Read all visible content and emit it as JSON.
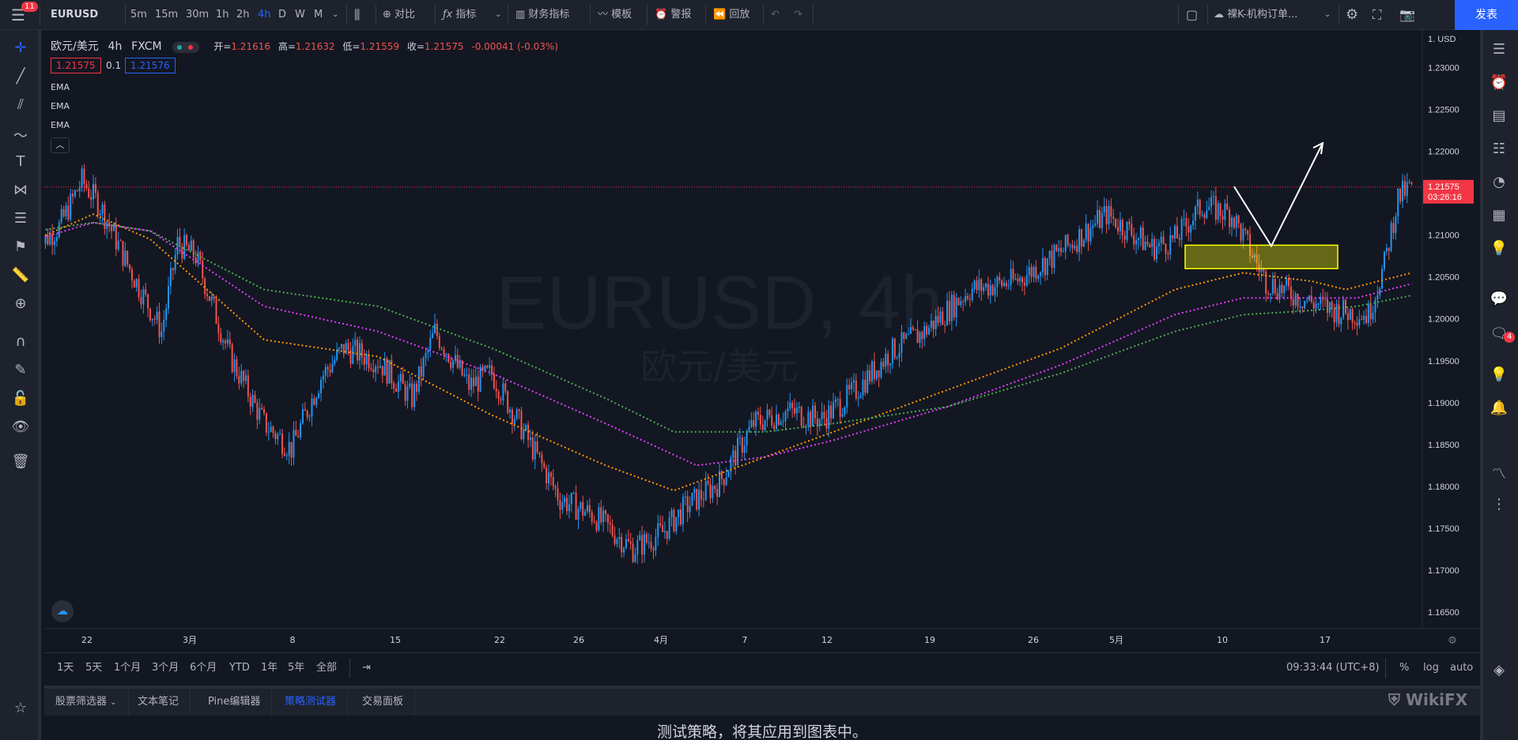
{
  "topbar": {
    "badge": "11",
    "symbol": "EURUSD",
    "intervals": [
      "5m",
      "15m",
      "30m",
      "1h",
      "2h",
      "4h",
      "D",
      "W",
      "M"
    ],
    "active_interval": "4h",
    "compare": "对比",
    "indicators": "指标",
    "financials": "财务指标",
    "templates": "模板",
    "alert": "警报",
    "replay": "回放",
    "layout_name": "裸K-机构订单...",
    "publish": "发表"
  },
  "legend": {
    "pair": "欧元/美元",
    "interval": "4h",
    "source": "FXCM",
    "open_label": "开=",
    "open": "1.21616",
    "high_label": "高=",
    "high": "1.21632",
    "low_label": "低=",
    "low": "1.21559",
    "close_label": "收=",
    "close": "1.21575",
    "change": "-0.00041 (-0.03%)",
    "bid": "1.21575",
    "spread": "0.1",
    "ask": "1.21576",
    "indicators": [
      "EMA",
      "EMA",
      "EMA"
    ]
  },
  "watermark": {
    "symbol": "EURUSD, 4h",
    "name": "欧元/美元"
  },
  "price_axis": {
    "currency": "1. USD",
    "ticks": [
      "1.23000",
      "1.22500",
      "1.22000",
      "1.21500",
      "1.21000",
      "1.20500",
      "1.20000",
      "1.19500",
      "1.19000",
      "1.18500",
      "1.18000",
      "1.17500",
      "1.17000",
      "1.16500"
    ],
    "last_price": "1.21575",
    "countdown": "03:26:16"
  },
  "time_axis": {
    "ticks": [
      "22",
      "3月",
      "8",
      "15",
      "22",
      "26",
      "4月",
      "7",
      "12",
      "19",
      "26",
      "5月",
      "10",
      "17"
    ]
  },
  "chart_data": {
    "type": "candlestick",
    "symbol": "EURUSD",
    "ylim": [
      1.163,
      1.2345
    ],
    "close_points": [
      [
        0,
        1.2085
      ],
      [
        10,
        1.211
      ],
      [
        20,
        1.2165
      ],
      [
        28,
        1.2135
      ],
      [
        40,
        1.2065
      ],
      [
        55,
        1.1985
      ],
      [
        62,
        1.209
      ],
      [
        70,
        1.2075
      ],
      [
        85,
        1.1955
      ],
      [
        100,
        1.1875
      ],
      [
        112,
        1.1845
      ],
      [
        125,
        1.193
      ],
      [
        135,
        1.1965
      ],
      [
        150,
        1.195
      ],
      [
        165,
        1.1905
      ],
      [
        175,
        1.1985
      ],
      [
        190,
        1.192
      ],
      [
        200,
        1.1935
      ],
      [
        215,
        1.186
      ],
      [
        230,
        1.1785
      ],
      [
        245,
        1.1765
      ],
      [
        262,
        1.1725
      ],
      [
        275,
        1.1745
      ],
      [
        285,
        1.1775
      ],
      [
        300,
        1.1805
      ],
      [
        315,
        1.1875
      ],
      [
        330,
        1.189
      ],
      [
        345,
        1.188
      ],
      [
        360,
        1.1915
      ],
      [
        375,
        1.196
      ],
      [
        390,
        1.1985
      ],
      [
        410,
        1.2035
      ],
      [
        430,
        1.2045
      ],
      [
        450,
        1.208
      ],
      [
        470,
        1.2125
      ],
      [
        490,
        1.2085
      ],
      [
        500,
        1.2095
      ],
      [
        512,
        1.2135
      ],
      [
        525,
        1.2125
      ],
      [
        540,
        1.2045
      ],
      [
        555,
        1.2025
      ],
      [
        570,
        1.201
      ],
      [
        585,
        1.2005
      ],
      [
        592,
        1.2065
      ],
      [
        598,
        1.2145
      ],
      [
        604,
        1.2158
      ]
    ],
    "ema_series": [
      {
        "color": "#ff9800",
        "points": [
          [
            0,
            1.2095
          ],
          [
            25,
            1.2125
          ],
          [
            50,
            1.2095
          ],
          [
            100,
            1.1975
          ],
          [
            150,
            1.1955
          ],
          [
            200,
            1.1885
          ],
          [
            250,
            1.1825
          ],
          [
            280,
            1.1795
          ],
          [
            300,
            1.1815
          ],
          [
            350,
            1.1865
          ],
          [
            400,
            1.1915
          ],
          [
            450,
            1.1965
          ],
          [
            500,
            1.2035
          ],
          [
            530,
            1.2055
          ],
          [
            560,
            1.2045
          ],
          [
            575,
            1.2035
          ],
          [
            604,
            1.2055
          ]
        ]
      },
      {
        "color": "#e040fb",
        "points": [
          [
            0,
            1.2095
          ],
          [
            25,
            1.2115
          ],
          [
            50,
            1.2105
          ],
          [
            100,
            1.2015
          ],
          [
            150,
            1.1985
          ],
          [
            200,
            1.1935
          ],
          [
            250,
            1.1875
          ],
          [
            290,
            1.1825
          ],
          [
            320,
            1.1835
          ],
          [
            350,
            1.1855
          ],
          [
            400,
            1.1895
          ],
          [
            450,
            1.1945
          ],
          [
            500,
            1.2005
          ],
          [
            530,
            1.2025
          ],
          [
            560,
            1.2025
          ],
          [
            580,
            1.2025
          ],
          [
            604,
            1.2042
          ]
        ]
      },
      {
        "color": "#4caf50",
        "points": [
          [
            0,
            1.2105
          ],
          [
            25,
            1.2115
          ],
          [
            50,
            1.2105
          ],
          [
            100,
            1.2035
          ],
          [
            150,
            1.2015
          ],
          [
            200,
            1.1965
          ],
          [
            250,
            1.1905
          ],
          [
            280,
            1.1865
          ],
          [
            320,
            1.1865
          ],
          [
            350,
            1.1875
          ],
          [
            400,
            1.1895
          ],
          [
            450,
            1.1935
          ],
          [
            500,
            1.1985
          ],
          [
            530,
            1.2005
          ],
          [
            560,
            1.201
          ],
          [
            580,
            1.2015
          ],
          [
            604,
            1.2028
          ]
        ]
      }
    ],
    "annotation_zone": {
      "price_from": 1.206,
      "price_to": 1.2088,
      "color": "#ffff00"
    },
    "projection": [
      [
        1.2158
      ],
      [
        1.2087
      ],
      [
        1.221
      ]
    ],
    "last_price": 1.21575
  },
  "bottom_toolbar": {
    "ranges": [
      "1天",
      "5天",
      "1个月",
      "3个月",
      "6个月",
      "YTD",
      "1年",
      "5年",
      "全部"
    ],
    "clock": "09:33:44 (UTC+8)",
    "percent": "%",
    "log": "log",
    "auto": "auto"
  },
  "panel": {
    "tabs": [
      "股票筛选器",
      "文本笔记",
      "Pine编辑器",
      "策略测试器",
      "交易面板"
    ],
    "active_tab": "策略测试器",
    "message": "测试策略，将其应用到图表中。",
    "notif_count": "4",
    "brand": "WikiFX"
  }
}
